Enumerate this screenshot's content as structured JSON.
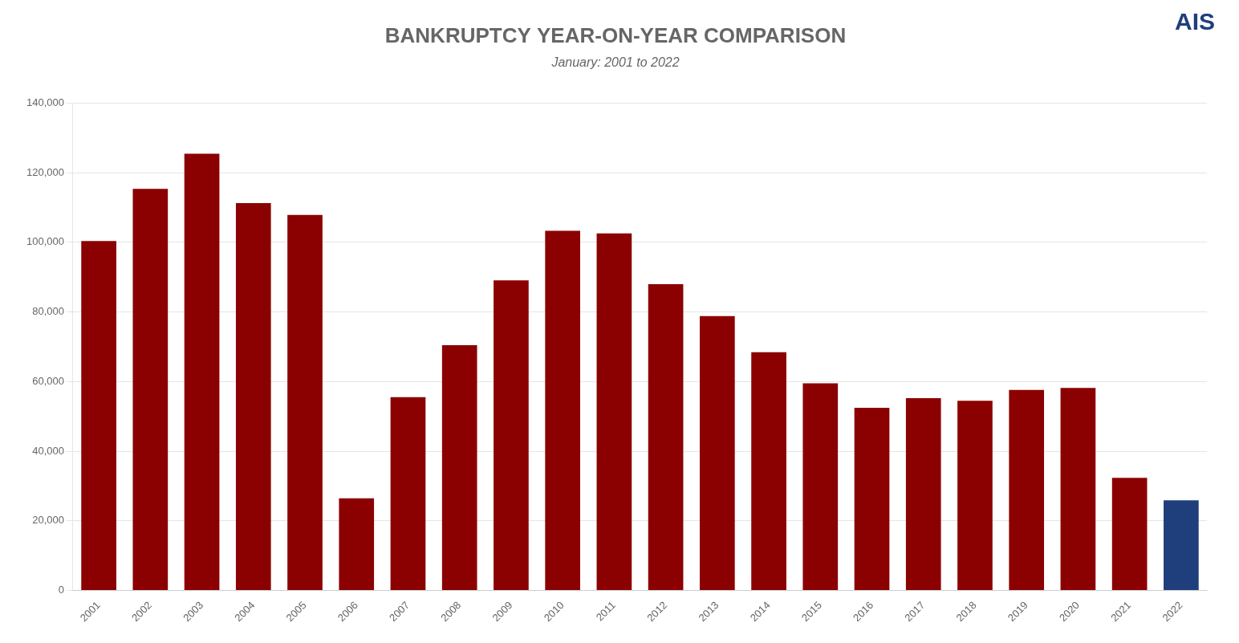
{
  "chart_data": {
    "type": "bar",
    "title": "BANKRUPTCY YEAR-ON-YEAR COMPARISON",
    "subtitle": "January: 2001 to 2022",
    "annotations": [
      {
        "text": "AIS",
        "color": "#1F3E7C"
      }
    ],
    "categories": [
      "2001",
      "2002",
      "2003",
      "2004",
      "2005",
      "2006",
      "2007",
      "2008",
      "2009",
      "2010",
      "2011",
      "2012",
      "2013",
      "2014",
      "2015",
      "2016",
      "2017",
      "2018",
      "2019",
      "2020",
      "2021",
      "2022"
    ],
    "values": [
      100388,
      115366,
      125476,
      111244,
      107838,
      26490,
      55516,
      70439,
      89070,
      103291,
      102571,
      87968,
      78812,
      68443,
      59511,
      52463,
      55260,
      54456,
      57623,
      58151,
      32362,
      25881
    ],
    "colors": [
      "#8B0000",
      "#8B0000",
      "#8B0000",
      "#8B0000",
      "#8B0000",
      "#8B0000",
      "#8B0000",
      "#8B0000",
      "#8B0000",
      "#8B0000",
      "#8B0000",
      "#8B0000",
      "#8B0000",
      "#8B0000",
      "#8B0000",
      "#8B0000",
      "#8B0000",
      "#8B0000",
      "#8B0000",
      "#8B0000",
      "#8B0000",
      "#1F3E7C"
    ],
    "ylim": [
      0,
      140000
    ],
    "yticks": [
      0,
      {
        "value": 20000,
        "label": "20,000"
      },
      {
        "value": 40000,
        "label": "40,000"
      },
      {
        "value": 60000,
        "label": "60,000"
      },
      {
        "value": 80000,
        "label": "80,000"
      },
      {
        "value": 100000,
        "label": "100,000"
      },
      {
        "value": 120000,
        "label": "120,000"
      },
      {
        "value": 140000,
        "label": "140,000"
      }
    ],
    "grid": true
  }
}
